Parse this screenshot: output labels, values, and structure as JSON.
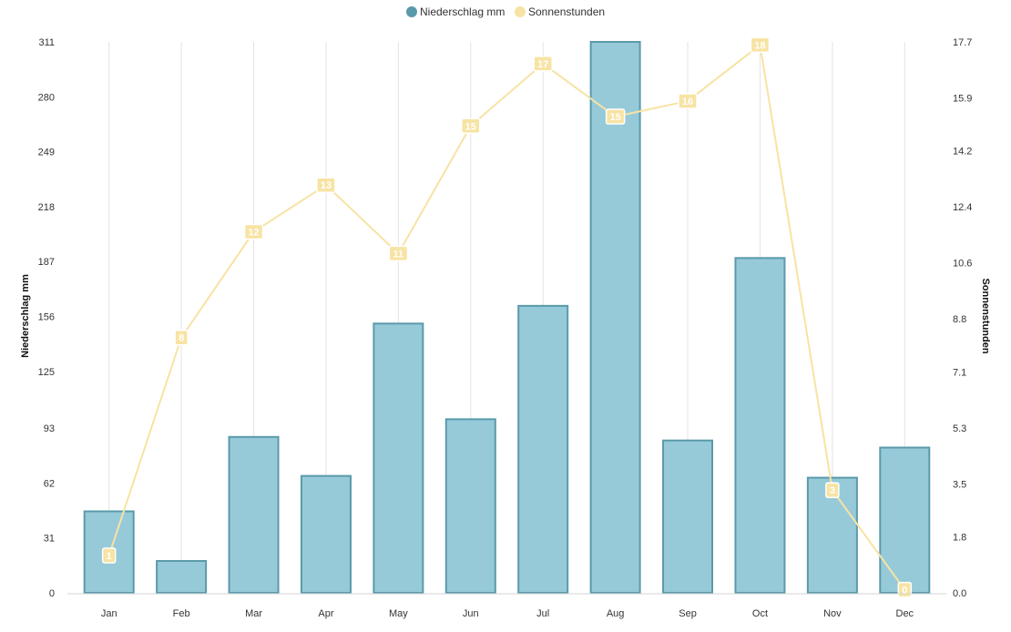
{
  "chart_data": {
    "type": "bar",
    "categories": [
      "Jan",
      "Feb",
      "Mar",
      "Apr",
      "May",
      "Jun",
      "Jul",
      "Aug",
      "Sep",
      "Oct",
      "Nov",
      "Dec"
    ],
    "series": [
      {
        "name": "Niederschlag mm",
        "type": "bar",
        "axis": "left",
        "color": "#97cad8",
        "border_color": "#5a9aaa",
        "values": [
          46,
          18,
          88,
          66,
          152,
          98,
          162,
          311,
          86,
          189,
          65,
          82
        ]
      },
      {
        "name": "Sonnenstunden",
        "type": "line",
        "axis": "right",
        "color": "#f7e3a3",
        "values": [
          1.2,
          8.2,
          11.6,
          13.1,
          10.9,
          15.0,
          17.0,
          15.3,
          15.8,
          17.6,
          3.3,
          0.1
        ],
        "data_labels": [
          "1",
          "8",
          "12",
          "13",
          "11",
          "15",
          "17",
          "15",
          "16",
          "18",
          "3",
          "0"
        ]
      }
    ],
    "y_left": {
      "label": "Niederschlag mm",
      "ylim": [
        0,
        311
      ],
      "ticks": [
        "0",
        "31",
        "62",
        "93",
        "125",
        "156",
        "187",
        "218",
        "249",
        "280",
        "311"
      ]
    },
    "y_right": {
      "label": "Sonnenstunden",
      "ylim": [
        0,
        17.7
      ],
      "ticks": [
        "0.0",
        "1.8",
        "3.5",
        "5.3",
        "7.1",
        "8.8",
        "10.6",
        "12.4",
        "14.2",
        "15.9",
        "17.7"
      ]
    },
    "legend": {
      "position": "top-center",
      "items": [
        "Niederschlag mm",
        "Sonnenstunden"
      ]
    },
    "grid": {
      "vertical": true,
      "horizontal": false
    }
  }
}
